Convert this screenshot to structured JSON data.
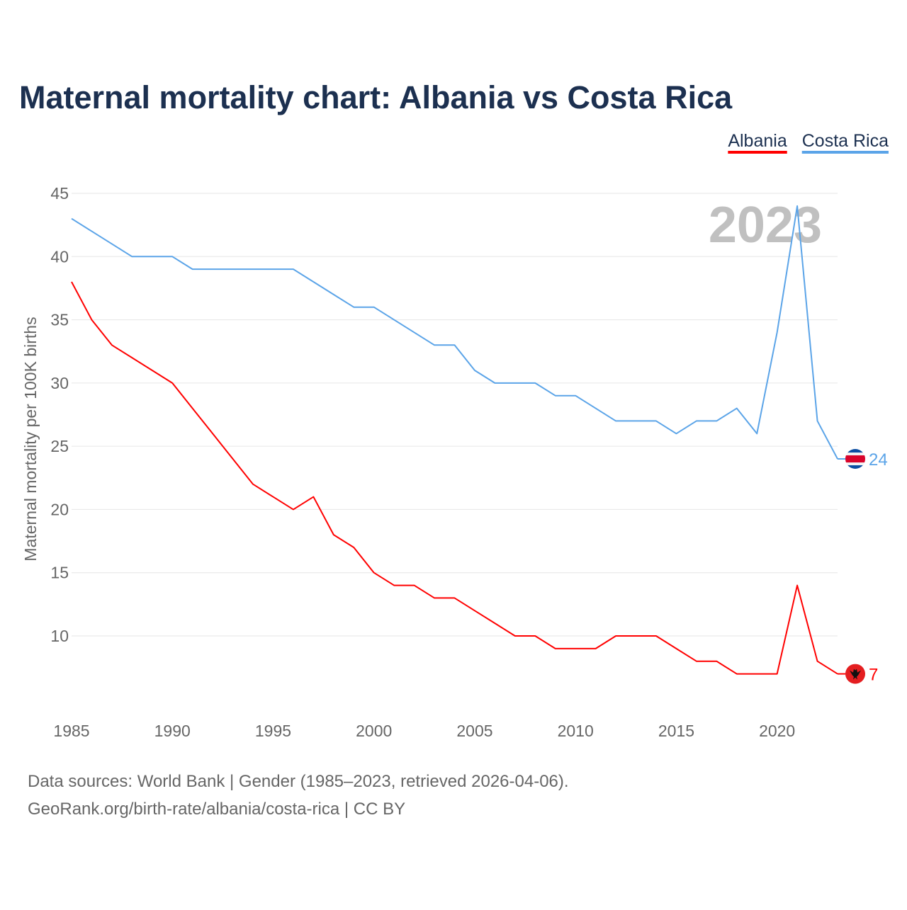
{
  "chart_data": {
    "type": "line",
    "title": "Maternal mortality chart: Albania vs Costa Rica",
    "ylabel": "Maternal mortality per 100K births",
    "xlabel": "",
    "xlim": [
      1985,
      2023
    ],
    "ylim": [
      3,
      45
    ],
    "xticks": [
      1985,
      1990,
      1995,
      2000,
      2005,
      2010,
      2015,
      2020
    ],
    "yticks": [
      10,
      15,
      20,
      25,
      30,
      35,
      40,
      45
    ],
    "grid": true,
    "legend_position": "top-right",
    "year_watermark": "2023",
    "x": [
      1985,
      1986,
      1987,
      1988,
      1989,
      1990,
      1991,
      1992,
      1993,
      1994,
      1995,
      1996,
      1997,
      1998,
      1999,
      2000,
      2001,
      2002,
      2003,
      2004,
      2005,
      2006,
      2007,
      2008,
      2009,
      2010,
      2011,
      2012,
      2013,
      2014,
      2015,
      2016,
      2017,
      2018,
      2019,
      2020,
      2021,
      2022,
      2023
    ],
    "series": [
      {
        "name": "Albania",
        "color": "#ff0000",
        "end_label": "7",
        "values": [
          38,
          35,
          33,
          32,
          31,
          30,
          28,
          26,
          24,
          22,
          21,
          20,
          21,
          18,
          17,
          15,
          14,
          14,
          13,
          13,
          12,
          11,
          10,
          10,
          9,
          9,
          9,
          10,
          10,
          10,
          9,
          8,
          8,
          7,
          7,
          7,
          14,
          8,
          7
        ]
      },
      {
        "name": "Costa Rica",
        "color": "#5ba4e8",
        "end_label": "24",
        "values": [
          43,
          42,
          41,
          40,
          40,
          40,
          39,
          39,
          39,
          39,
          39,
          39,
          38,
          37,
          36,
          36,
          35,
          34,
          33,
          33,
          31,
          30,
          30,
          30,
          29,
          29,
          28,
          27,
          27,
          27,
          26,
          27,
          27,
          28,
          26,
          34,
          44,
          27,
          24
        ]
      }
    ]
  },
  "footer": {
    "line1": "Data sources: World Bank | Gender (1985–2023, retrieved 2026-04-06).",
    "line2": "GeoRank.org/birth-rate/albania/costa-rica | CC BY"
  }
}
